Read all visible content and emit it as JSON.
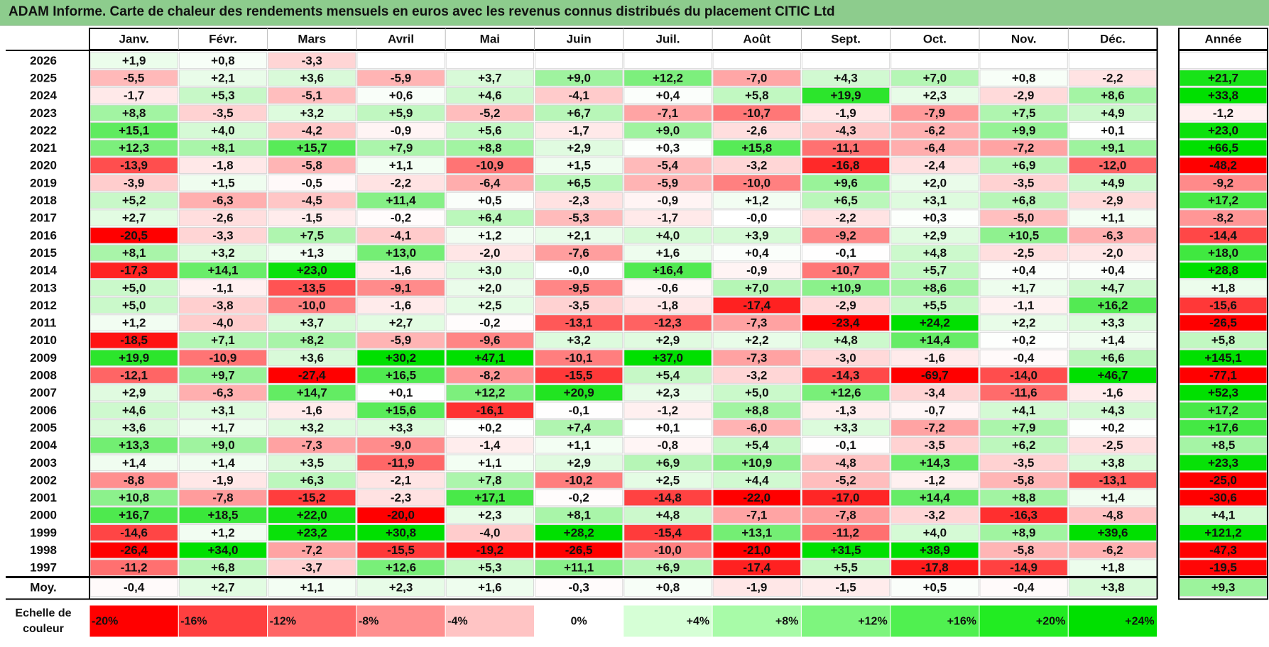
{
  "chart_data": {
    "type": "heatmap",
    "title": "ADAM Informe. Carte de chaleur des rendements mensuels en euros avec les revenus connus distribués du placement CITIC Ltd",
    "columns": [
      "Janv.",
      "Févr.",
      "Mars",
      "Avril",
      "Mai",
      "Juin",
      "Juil.",
      "Août",
      "Sept.",
      "Oct.",
      "Nov.",
      "Déc."
    ],
    "annual_label": "Année",
    "rows": [
      {
        "year": "2026",
        "values": [
          "+1,9",
          "+0,8",
          "-3,3",
          "",
          "",
          "",
          "",
          "",
          "",
          "",
          "",
          ""
        ],
        "annual": ""
      },
      {
        "year": "2025",
        "values": [
          "-5,5",
          "+2,1",
          "+3,6",
          "-5,9",
          "+3,7",
          "+9,0",
          "+12,2",
          "-7,0",
          "+4,3",
          "+7,0",
          "+0,8",
          "-2,2"
        ],
        "annual": "+21,7"
      },
      {
        "year": "2024",
        "values": [
          "-1,7",
          "+5,3",
          "-5,1",
          "+0,6",
          "+4,6",
          "-4,1",
          "+0,4",
          "+5,8",
          "+19,9",
          "+2,3",
          "-2,9",
          "+8,6"
        ],
        "annual": "+33,8"
      },
      {
        "year": "2023",
        "values": [
          "+8,8",
          "-3,5",
          "+3,2",
          "+5,9",
          "-5,2",
          "+6,7",
          "-7,1",
          "-10,7",
          "-1,9",
          "-7,9",
          "+7,5",
          "+4,9"
        ],
        "annual": "-1,2"
      },
      {
        "year": "2022",
        "values": [
          "+15,1",
          "+4,0",
          "-4,2",
          "-0,9",
          "+5,6",
          "-1,7",
          "+9,0",
          "-2,6",
          "-4,3",
          "-6,2",
          "+9,9",
          "+0,1"
        ],
        "annual": "+23,0"
      },
      {
        "year": "2021",
        "values": [
          "+12,3",
          "+8,1",
          "+15,7",
          "+7,9",
          "+8,8",
          "+2,9",
          "+0,3",
          "+15,8",
          "-11,1",
          "-6,4",
          "-7,2",
          "+9,1"
        ],
        "annual": "+66,5"
      },
      {
        "year": "2020",
        "values": [
          "-13,9",
          "-1,8",
          "-5,8",
          "+1,1",
          "-10,9",
          "+1,5",
          "-5,4",
          "-3,2",
          "-16,8",
          "-2,4",
          "+6,9",
          "-12,0"
        ],
        "annual": "-48,2"
      },
      {
        "year": "2019",
        "values": [
          "-3,9",
          "+1,5",
          "-0,5",
          "-2,2",
          "-6,4",
          "+6,5",
          "-5,9",
          "-10,0",
          "+9,6",
          "+2,0",
          "-3,5",
          "+4,9"
        ],
        "annual": "-9,2"
      },
      {
        "year": "2018",
        "values": [
          "+5,2",
          "-6,3",
          "-4,5",
          "+11,4",
          "+0,5",
          "-2,3",
          "-0,9",
          "+1,2",
          "+6,5",
          "+3,1",
          "+6,8",
          "-2,9"
        ],
        "annual": "+17,2"
      },
      {
        "year": "2017",
        "values": [
          "+2,7",
          "-2,6",
          "-1,5",
          "-0,2",
          "+6,4",
          "-5,3",
          "-1,7",
          "-0,0",
          "-2,2",
          "+0,3",
          "-5,0",
          "+1,1"
        ],
        "annual": "-8,2"
      },
      {
        "year": "2016",
        "values": [
          "-20,5",
          "-3,3",
          "+7,5",
          "-4,1",
          "+1,2",
          "+2,1",
          "+4,0",
          "+3,9",
          "-9,2",
          "+2,9",
          "+10,5",
          "-6,3"
        ],
        "annual": "-14,4"
      },
      {
        "year": "2015",
        "values": [
          "+8,1",
          "+3,2",
          "+1,3",
          "+13,0",
          "-2,0",
          "-7,6",
          "+1,6",
          "+0,4",
          "-0,1",
          "+4,8",
          "-2,5",
          "-2,0"
        ],
        "annual": "+18,0"
      },
      {
        "year": "2014",
        "values": [
          "-17,3",
          "+14,1",
          "+23,0",
          "-1,6",
          "+3,0",
          "-0,0",
          "+16,4",
          "-0,9",
          "-10,7",
          "+5,7",
          "+0,4",
          "+0,4"
        ],
        "annual": "+28,8"
      },
      {
        "year": "2013",
        "values": [
          "+5,0",
          "-1,1",
          "-13,5",
          "-9,1",
          "+2,0",
          "-9,5",
          "-0,6",
          "+7,0",
          "+10,9",
          "+8,6",
          "+1,7",
          "+4,7"
        ],
        "annual": "+1,8"
      },
      {
        "year": "2012",
        "values": [
          "+5,0",
          "-3,8",
          "-10,0",
          "-1,6",
          "+2,5",
          "-3,5",
          "-1,8",
          "-17,4",
          "-2,9",
          "+5,5",
          "-1,1",
          "+16,2"
        ],
        "annual": "-15,6"
      },
      {
        "year": "2011",
        "values": [
          "+1,2",
          "-4,0",
          "+3,7",
          "+2,7",
          "-0,2",
          "-13,1",
          "-12,3",
          "-7,3",
          "-23,4",
          "+24,2",
          "+2,2",
          "+3,3"
        ],
        "annual": "-26,5"
      },
      {
        "year": "2010",
        "values": [
          "-18,5",
          "+7,1",
          "+8,2",
          "-5,9",
          "-9,6",
          "+3,2",
          "+2,9",
          "+2,2",
          "+4,8",
          "+14,4",
          "+0,2",
          "+1,4"
        ],
        "annual": "+5,8"
      },
      {
        "year": "2009",
        "values": [
          "+19,9",
          "-10,9",
          "+3,6",
          "+30,2",
          "+47,1",
          "-10,1",
          "+37,0",
          "-7,3",
          "-3,0",
          "-1,6",
          "-0,4",
          "+6,6"
        ],
        "annual": "+145,1"
      },
      {
        "year": "2008",
        "values": [
          "-12,1",
          "+9,7",
          "-27,4",
          "+16,5",
          "-8,2",
          "-15,5",
          "+5,4",
          "-3,2",
          "-14,3",
          "-69,7",
          "-14,0",
          "+46,7"
        ],
        "annual": "-77,1"
      },
      {
        "year": "2007",
        "values": [
          "+2,9",
          "-6,3",
          "+14,7",
          "+0,1",
          "+12,2",
          "+20,9",
          "+2,3",
          "+5,0",
          "+12,6",
          "-3,4",
          "-11,6",
          "-1,6"
        ],
        "annual": "+52,3"
      },
      {
        "year": "2006",
        "values": [
          "+4,6",
          "+3,1",
          "-1,6",
          "+15,6",
          "-16,1",
          "-0,1",
          "-1,2",
          "+8,8",
          "-1,3",
          "-0,7",
          "+4,1",
          "+4,3"
        ],
        "annual": "+17,2"
      },
      {
        "year": "2005",
        "values": [
          "+3,6",
          "+1,7",
          "+3,2",
          "+3,3",
          "+0,2",
          "+7,4",
          "+0,1",
          "-6,0",
          "+3,3",
          "-7,2",
          "+7,9",
          "+0,2"
        ],
        "annual": "+17,6"
      },
      {
        "year": "2004",
        "values": [
          "+13,3",
          "+9,0",
          "-7,3",
          "-9,0",
          "-1,4",
          "+1,1",
          "-0,8",
          "+5,4",
          "-0,1",
          "-3,5",
          "+6,2",
          "-2,5"
        ],
        "annual": "+8,5"
      },
      {
        "year": "2003",
        "values": [
          "+1,4",
          "+1,4",
          "+3,5",
          "-11,9",
          "+1,1",
          "+2,9",
          "+6,9",
          "+10,9",
          "-4,8",
          "+14,3",
          "-3,5",
          "+3,8"
        ],
        "annual": "+23,3"
      },
      {
        "year": "2002",
        "values": [
          "-8,8",
          "-1,9",
          "+6,3",
          "-2,1",
          "+7,8",
          "-10,2",
          "+2,5",
          "+4,4",
          "-5,2",
          "-1,2",
          "-5,8",
          "-13,1"
        ],
        "annual": "-25,0"
      },
      {
        "year": "2001",
        "values": [
          "+10,8",
          "-7,8",
          "-15,2",
          "-2,3",
          "+17,1",
          "-0,2",
          "-14,8",
          "-22,0",
          "-17,0",
          "+14,4",
          "+8,8",
          "+1,4"
        ],
        "annual": "-30,6"
      },
      {
        "year": "2000",
        "values": [
          "+16,7",
          "+18,5",
          "+22,0",
          "-20,0",
          "+2,3",
          "+8,1",
          "+4,8",
          "-7,1",
          "-7,8",
          "-3,2",
          "-16,3",
          "-4,8"
        ],
        "annual": "+4,1"
      },
      {
        "year": "1999",
        "values": [
          "-14,6",
          "+1,2",
          "+23,2",
          "+30,8",
          "-4,0",
          "+28,2",
          "-15,4",
          "+13,1",
          "-11,2",
          "+4,0",
          "+8,9",
          "+39,6"
        ],
        "annual": "+121,2"
      },
      {
        "year": "1998",
        "values": [
          "-26,4",
          "+34,0",
          "-7,2",
          "-15,5",
          "-19,2",
          "-26,5",
          "-10,0",
          "-21,0",
          "+31,5",
          "+38,9",
          "-5,8",
          "-6,2"
        ],
        "annual": "-47,3"
      },
      {
        "year": "1997",
        "values": [
          "-11,2",
          "+6,8",
          "-3,7",
          "+12,6",
          "+5,3",
          "+11,1",
          "+6,9",
          "-17,4",
          "+5,5",
          "-17,8",
          "-14,9",
          "+1,8"
        ],
        "annual": "-19,5"
      }
    ],
    "average_row": {
      "label": "Moy.",
      "values": [
        "-0,4",
        "+2,7",
        "+1,1",
        "+2,3",
        "+1,6",
        "-0,3",
        "+0,8",
        "-1,9",
        "-1,5",
        "+0,5",
        "-0,4",
        "+3,8"
      ],
      "annual": "+9,3"
    },
    "scale": {
      "label_line1": "Echelle de",
      "label_line2": "couleur",
      "labels": [
        "-20%",
        "-16%",
        "-12%",
        "-8%",
        "-4%",
        "0%",
        "+4%",
        "+8%",
        "+12%",
        "+16%",
        "+20%",
        "+24%"
      ],
      "colors": [
        "#ff0000",
        "#ff4040",
        "#ff6666",
        "#ff8f8f",
        "#ffc4c4",
        "#ffffff",
        "#d6ffd6",
        "#a8fba8",
        "#7ef57e",
        "#50f050",
        "#22ec22",
        "#00e000"
      ]
    },
    "color_domain": {
      "min": -20,
      "mid": 0,
      "max": 24
    }
  }
}
